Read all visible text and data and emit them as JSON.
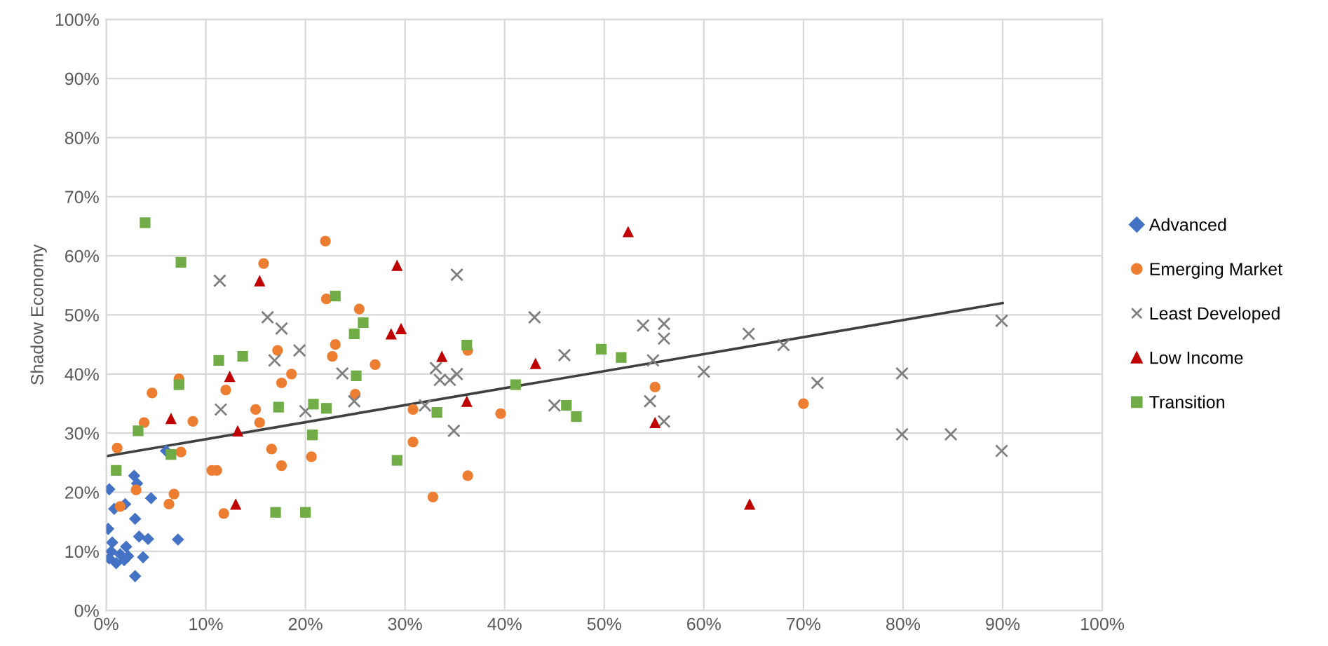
{
  "chart_data": {
    "type": "scatter",
    "ylabel": "Shadow Economy",
    "xlim": [
      0,
      100
    ],
    "ylim": [
      0,
      100
    ],
    "xticks": [
      {
        "value": 0,
        "label": "0%"
      },
      {
        "value": 10,
        "label": "10%"
      },
      {
        "value": 20,
        "label": "20%"
      },
      {
        "value": 30,
        "label": "30%"
      },
      {
        "value": 40,
        "label": "40%"
      },
      {
        "value": 50,
        "label": "50%"
      },
      {
        "value": 60,
        "label": "60%"
      },
      {
        "value": 70,
        "label": "70%"
      },
      {
        "value": 80,
        "label": "80%"
      },
      {
        "value": 90,
        "label": "90%"
      },
      {
        "value": 100,
        "label": "100%"
      }
    ],
    "yticks": [
      {
        "value": 0,
        "label": "0%"
      },
      {
        "value": 10,
        "label": "10%"
      },
      {
        "value": 20,
        "label": "20%"
      },
      {
        "value": 30,
        "label": "30%"
      },
      {
        "value": 40,
        "label": "40%"
      },
      {
        "value": 50,
        "label": "50%"
      },
      {
        "value": 60,
        "label": "60%"
      },
      {
        "value": 70,
        "label": "70%"
      },
      {
        "value": 80,
        "label": "80%"
      },
      {
        "value": 90,
        "label": "90%"
      },
      {
        "value": 100,
        "label": "100%"
      }
    ],
    "grid": true,
    "legend": "right",
    "series": [
      {
        "name": "Advanced",
        "color": "#4472c4",
        "marker": "diamond",
        "x": [
          0.3,
          0.2,
          0.8,
          1.9,
          2.8,
          3.1,
          2.9,
          3.3,
          4.2,
          4.5,
          3.7,
          2.9,
          7.2,
          6.4,
          6.0,
          0.5,
          0.8,
          1.2,
          1.5,
          1.8,
          0.3,
          1.0,
          2.0,
          0.6,
          1.4,
          2.2
        ],
        "values": [
          20.5,
          13.8,
          17.2,
          18,
          22.8,
          21.5,
          15.5,
          12.5,
          12.1,
          19,
          9,
          5.8,
          12,
          null,
          27,
          10,
          null,
          null,
          null,
          8.5,
          8.8,
          8,
          10.8,
          11.5,
          9.5,
          9.2
        ]
      },
      {
        "name": "Emerging Market",
        "color": "#ed7d31",
        "marker": "circle",
        "x": [
          1.1,
          1.4,
          3,
          6.3,
          6.8,
          11.8,
          3.8,
          4.6,
          7.3,
          8.7,
          7.5,
          10.6,
          11.1,
          12,
          15,
          15.4,
          16.6,
          17.6,
          20.6,
          17.6,
          18.6,
          17.2,
          15.8,
          22,
          22.1,
          25.4,
          23,
          22.7,
          25,
          27,
          30.8,
          30.8,
          36.3,
          32.8,
          36.3,
          39.6,
          55.1,
          70
        ],
        "values": [
          27.5,
          17.6,
          20.4,
          18,
          19.7,
          16.4,
          31.8,
          36.8,
          39.2,
          32,
          26.8,
          23.7,
          23.7,
          37.3,
          34,
          31.8,
          27.3,
          24.5,
          26,
          38.5,
          40,
          44,
          58.7,
          62.5,
          52.7,
          51,
          45,
          43,
          36.6,
          41.6,
          34,
          28.5,
          44,
          19.2,
          22.8,
          33.3,
          37.8,
          35
        ]
      },
      {
        "name": "Least Developed",
        "color": "#7f7f7f",
        "marker": "cross",
        "x": [
          11.4,
          16.2,
          17.6,
          19.4,
          16.9,
          23.7,
          24.9,
          11.5,
          20,
          35.2,
          43,
          46,
          53.9,
          56,
          56,
          54.9,
          54.6,
          56,
          45,
          33.1,
          33.5,
          34.5,
          35.2,
          32,
          34.9,
          64.5,
          68,
          60,
          71.4,
          79.9,
          79.9,
          84.8,
          89.9,
          89.9
        ],
        "values": [
          55.8,
          49.6,
          47.7,
          44,
          42.3,
          40.1,
          35.4,
          34,
          33.7,
          56.8,
          49.6,
          43.2,
          48.2,
          48.5,
          46,
          42.3,
          35.4,
          32,
          34.7,
          41,
          39,
          39,
          40,
          34.7,
          30.4,
          46.8,
          44.9,
          40.4,
          38.5,
          40.1,
          29.8,
          29.8,
          27,
          49
        ]
      },
      {
        "name": "Low Income",
        "color": "#c00000",
        "marker": "triangle",
        "x": [
          15.4,
          12.4,
          6.5,
          13.2,
          13,
          29.2,
          52.4,
          28.6,
          29.6,
          33.7,
          43.1,
          36.2,
          55.1,
          64.6
        ],
        "values": [
          55.8,
          39.6,
          32.5,
          30.4,
          18,
          58.4,
          64.1,
          46.8,
          47.7,
          43,
          41.8,
          35.4,
          31.8,
          18
        ]
      },
      {
        "name": "Transition",
        "color": "#70ad47",
        "marker": "square",
        "x": [
          3.9,
          7.5,
          23,
          25.8,
          24.9,
          11.3,
          13.7,
          7.3,
          25.1,
          17.3,
          20.8,
          22.1,
          20.7,
          3.2,
          1,
          6.5,
          17,
          20,
          36.2,
          33.2,
          41.1,
          29.2,
          49.7,
          51.7,
          46.2,
          47.2
        ],
        "values": [
          65.6,
          58.9,
          53.2,
          48.7,
          46.8,
          42.3,
          43,
          38.2,
          39.7,
          34.4,
          34.9,
          34.2,
          29.7,
          30.4,
          23.7,
          26.4,
          16.6,
          16.6,
          44.9,
          33.5,
          38.2,
          25.4,
          44.2,
          42.8,
          34.7,
          32.8
        ]
      },
      {
        "type": "line",
        "color": "#404040",
        "marker": "none",
        "x": [
          0,
          90
        ],
        "values": [
          26.1,
          52
        ]
      }
    ]
  }
}
